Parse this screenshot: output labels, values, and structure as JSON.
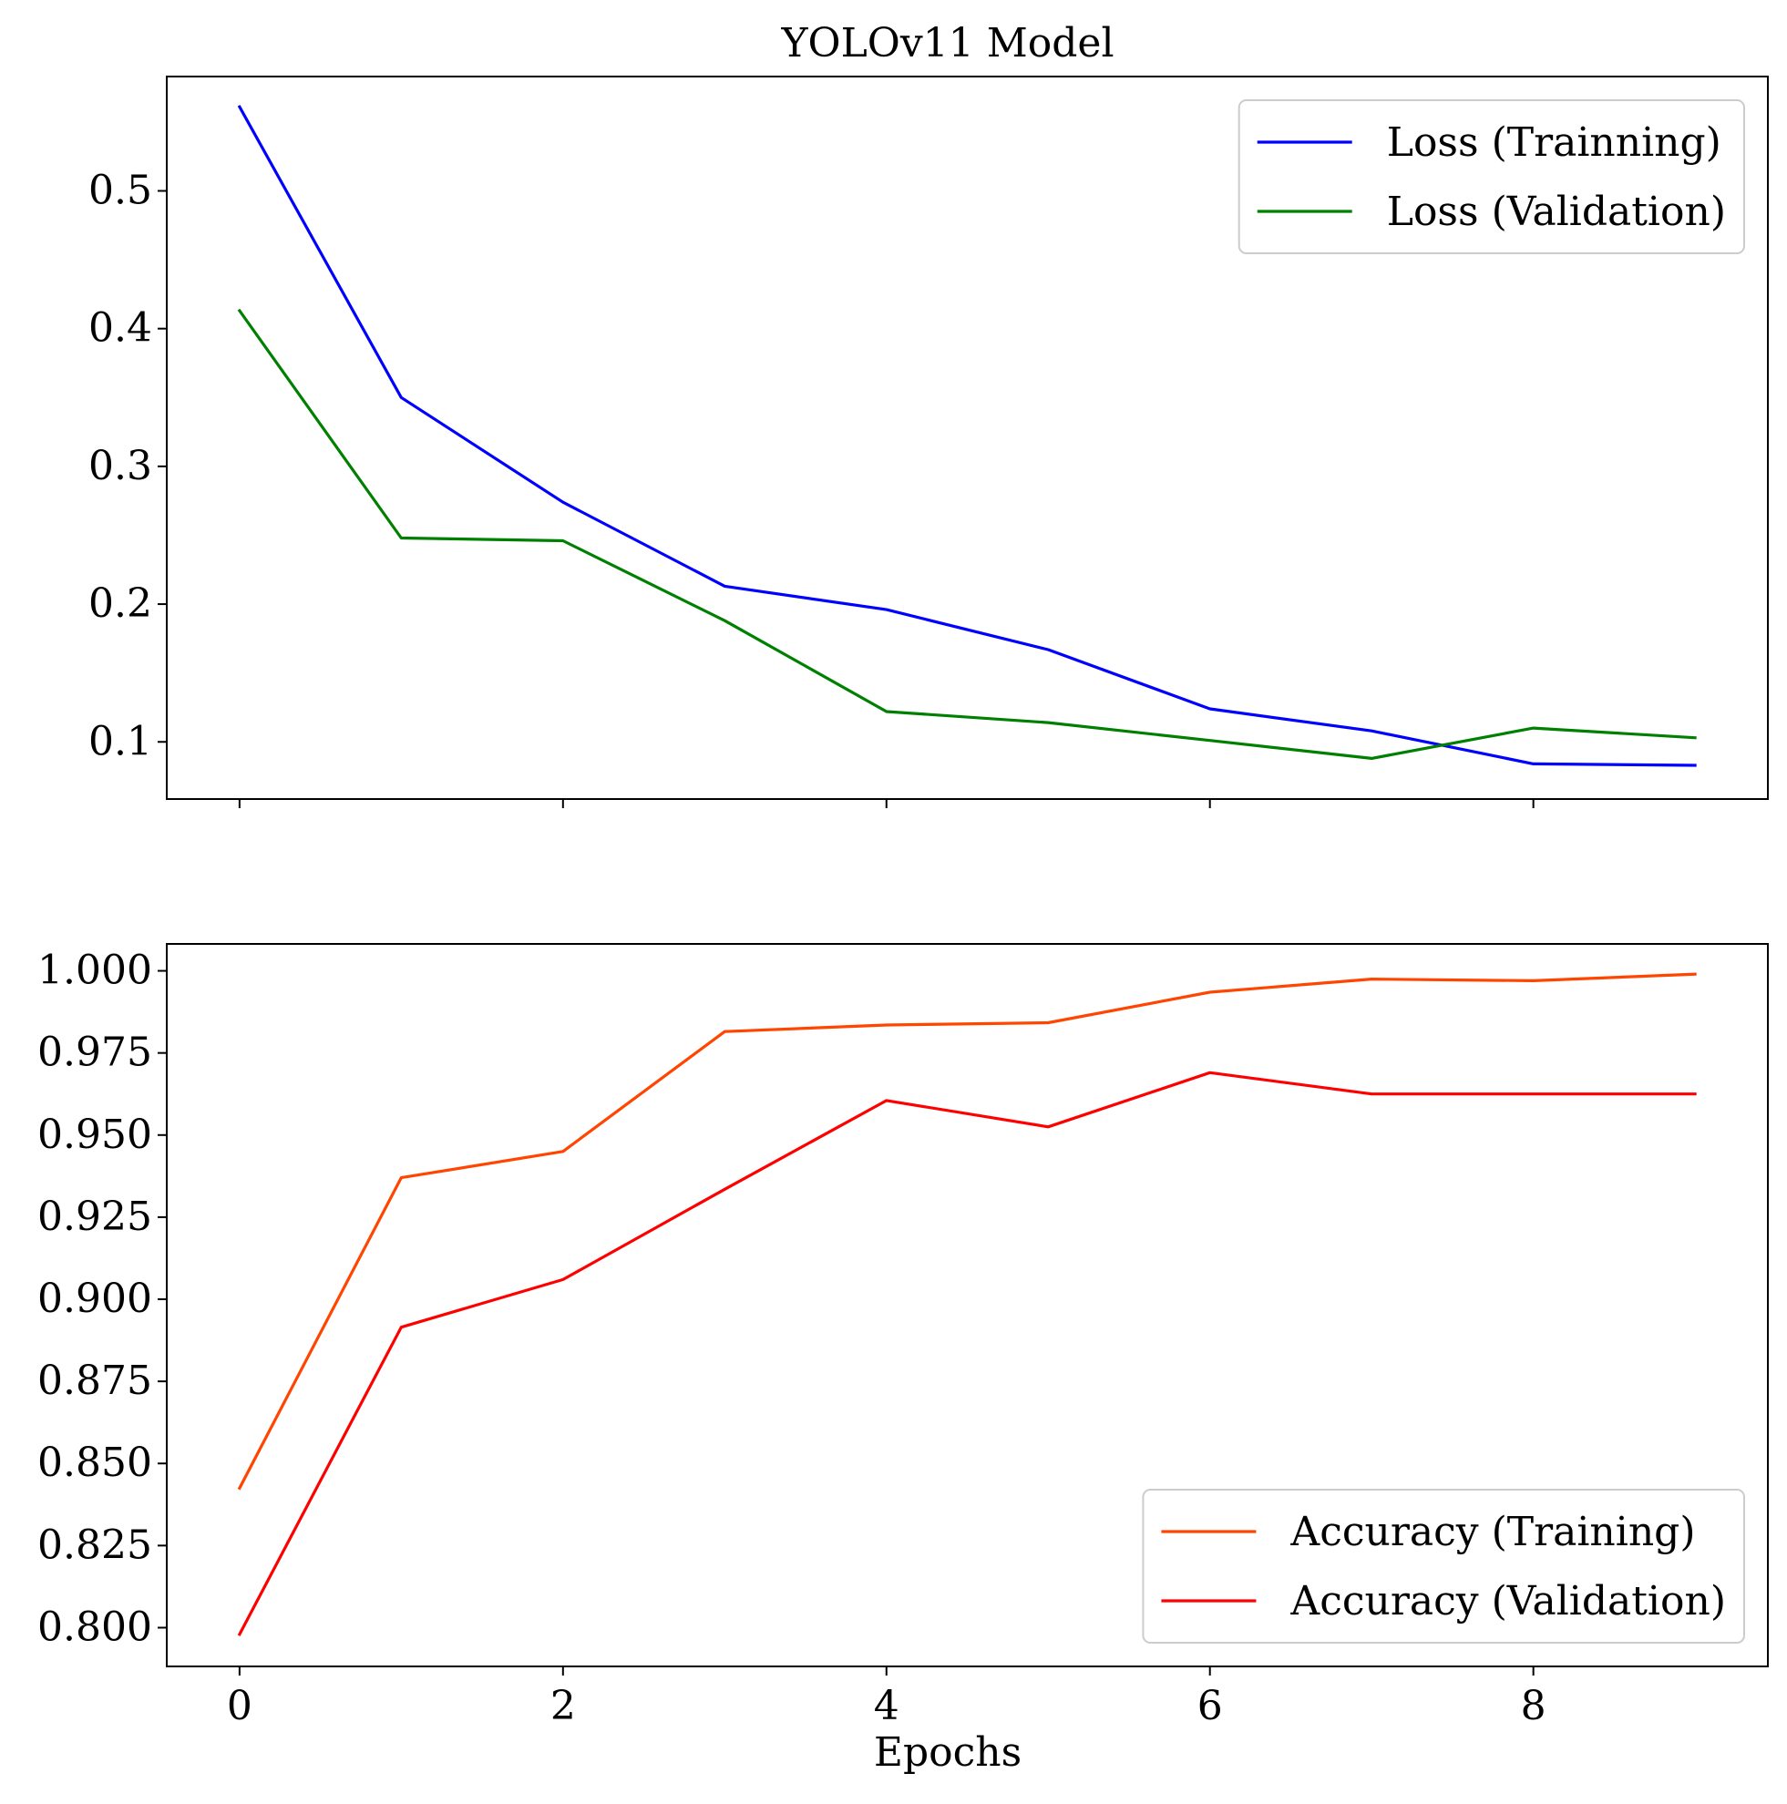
{
  "figure": {
    "title": "YOLOv11 Model",
    "shared_xlabel": "Epochs"
  },
  "chart_data": [
    {
      "type": "line",
      "id": "loss",
      "title": "YOLOv11 Model",
      "xlabel": "",
      "ylabel": "",
      "xlim": [
        -0.45,
        9.45
      ],
      "ylim": [
        0.0585,
        0.583
      ],
      "x_ticks": [
        0,
        2,
        4,
        6,
        8
      ],
      "x_tick_labels_visible": false,
      "y_ticks": [
        0.1,
        0.2,
        0.3,
        0.4,
        0.5
      ],
      "y_tick_labels": [
        "0.1",
        "0.2",
        "0.3",
        "0.4",
        "0.5"
      ],
      "legend_position": "top-right",
      "grid": false,
      "x": [
        0,
        1,
        2,
        3,
        4,
        5,
        6,
        7,
        8,
        9
      ],
      "series": [
        {
          "name": "Loss (Trainning)",
          "color": "#0000ff",
          "values": [
            0.561,
            0.35,
            0.274,
            0.213,
            0.196,
            0.167,
            0.124,
            0.108,
            0.084,
            0.083
          ]
        },
        {
          "name": "Loss (Validation)",
          "color": "#008000",
          "values": [
            0.413,
            0.248,
            0.246,
            0.188,
            0.122,
            0.114,
            0.101,
            0.088,
            0.11,
            0.103
          ]
        }
      ]
    },
    {
      "type": "line",
      "id": "accuracy",
      "title": "",
      "xlabel": "Epochs",
      "ylabel": "",
      "xlim": [
        -0.45,
        9.45
      ],
      "ylim": [
        0.7882,
        1.0082
      ],
      "x_ticks": [
        0,
        2,
        4,
        6,
        8
      ],
      "x_tick_labels": [
        "0",
        "2",
        "4",
        "6",
        "8"
      ],
      "y_ticks": [
        0.8,
        0.825,
        0.85,
        0.875,
        0.9,
        0.925,
        0.95,
        0.975,
        1.0
      ],
      "y_tick_labels": [
        "0.800",
        "0.825",
        "0.850",
        "0.875",
        "0.900",
        "0.925",
        "0.950",
        "0.975",
        "1.000"
      ],
      "legend_position": "bottom-right",
      "grid": false,
      "x": [
        0,
        1,
        2,
        3,
        4,
        5,
        6,
        7,
        8,
        9
      ],
      "series": [
        {
          "name": "Accuracy (Training)",
          "color": "#ff4500",
          "values": [
            0.8425,
            0.937,
            0.945,
            0.9815,
            0.9835,
            0.9842,
            0.9935,
            0.9975,
            0.997,
            0.999
          ]
        },
        {
          "name": "Accuracy (Validation)",
          "color": "#ff0000",
          "values": [
            0.798,
            0.8915,
            0.906,
            0.9335,
            0.9605,
            0.9525,
            0.969,
            0.9625,
            0.9625,
            0.9625
          ]
        }
      ]
    }
  ]
}
